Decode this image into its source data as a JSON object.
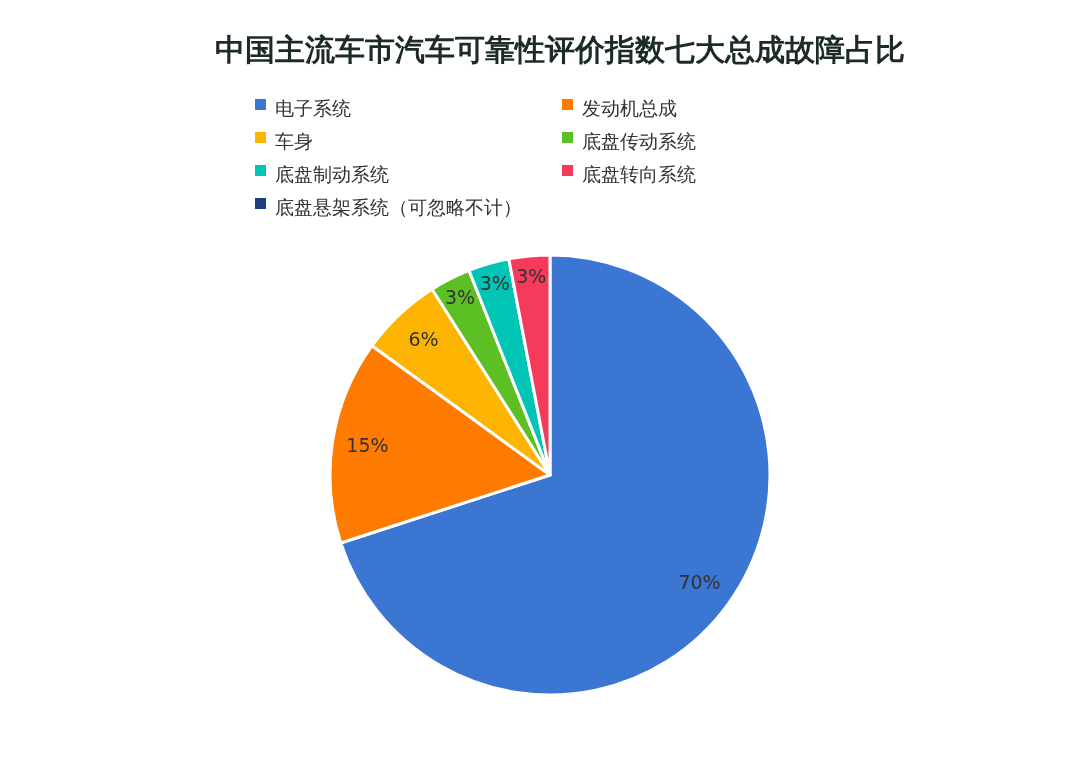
{
  "chart_data": {
    "type": "pie",
    "title": "中国主流车市汽车可靠性评价指数七大总成故障占比",
    "categories": [
      "电子系统",
      "发动机总成",
      "车身",
      "底盘传动系统",
      "底盘制动系统",
      "底盘转向系统",
      "底盘悬架系统（可忽略不计）"
    ],
    "values": [
      70,
      15,
      6,
      3,
      3,
      3,
      0
    ],
    "colors": [
      "#3a76d2",
      "#fe7b00",
      "#fdb400",
      "#5cbf23",
      "#00c4b4",
      "#f53a5c",
      "#1d3f80"
    ],
    "value_labels": [
      "70%",
      "15%",
      "6%",
      "3%",
      "3%",
      "3%",
      null
    ],
    "legend": "top"
  }
}
